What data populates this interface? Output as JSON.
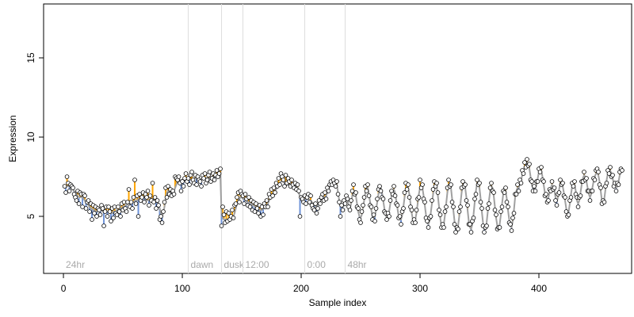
{
  "chart_data": {
    "type": "residual-scatter",
    "xlabel": "Sample index",
    "ylabel": "Expression",
    "xlim": [
      -16.7,
      478
    ],
    "ylim": [
      1.4,
      18.4
    ],
    "xticks": [
      0,
      100,
      200,
      300,
      400
    ],
    "yticks": [
      5,
      10,
      15
    ],
    "line_color": "#a0a0a0",
    "above_color": "#ffa500",
    "below_color": "#6f93d8",
    "point_color": "#ffffff",
    "vline_color": "#dddddd",
    "annotations": [
      {
        "x": 0,
        "label": "24hr",
        "line": false
      },
      {
        "x": 105,
        "label": "dawn",
        "line": true
      },
      {
        "x": 133,
        "label": "dusk",
        "line": true
      },
      {
        "x": 151,
        "label": "12:00",
        "line": true
      },
      {
        "x": 203,
        "label": "0:00",
        "line": true
      },
      {
        "x": 237,
        "label": "48hr",
        "line": true
      }
    ],
    "x": [
      1,
      2,
      3,
      4,
      5,
      6,
      7,
      8,
      9,
      10,
      11,
      12,
      13,
      14,
      15,
      16,
      17,
      18,
      19,
      20,
      21,
      22,
      23,
      24,
      25,
      26,
      27,
      28,
      29,
      30,
      31,
      32,
      33,
      34,
      35,
      36,
      37,
      38,
      39,
      40,
      41,
      42,
      43,
      44,
      45,
      46,
      47,
      48,
      49,
      50,
      51,
      52,
      53,
      54,
      55,
      56,
      57,
      58,
      59,
      60,
      61,
      62,
      63,
      64,
      65,
      66,
      67,
      68,
      69,
      70,
      71,
      72,
      73,
      74,
      75,
      76,
      77,
      78,
      79,
      80,
      81,
      82,
      83,
      84,
      85,
      86,
      87,
      88,
      89,
      90,
      91,
      92,
      93,
      94,
      95,
      96,
      97,
      98,
      99,
      100,
      101,
      102,
      103,
      104,
      105,
      106,
      107,
      108,
      109,
      110,
      111,
      112,
      113,
      114,
      115,
      116,
      117,
      118,
      119,
      120,
      121,
      122,
      123,
      124,
      125,
      126,
      127,
      128,
      129,
      130,
      131,
      132,
      133,
      134,
      135,
      136,
      137,
      138,
      139,
      140,
      141,
      142,
      143,
      144,
      145,
      146,
      147,
      148,
      149,
      150,
      151,
      152,
      153,
      154,
      155,
      156,
      157,
      158,
      159,
      160,
      161,
      162,
      163,
      164,
      165,
      166,
      167,
      168,
      169,
      170,
      171,
      172,
      173,
      174,
      175,
      176,
      177,
      178,
      179,
      180,
      181,
      182,
      183,
      184,
      185,
      186,
      187,
      188,
      189,
      190,
      191,
      192,
      193,
      194,
      195,
      196,
      197,
      198,
      199,
      200,
      201,
      202,
      203,
      204,
      205,
      206,
      207,
      208,
      209,
      210,
      211,
      212,
      213,
      214,
      215,
      216,
      217,
      218,
      219,
      220,
      221,
      222,
      223,
      224,
      225,
      226,
      227,
      228,
      229,
      230,
      231,
      232,
      233,
      234,
      235,
      236,
      237,
      238,
      239,
      240,
      241,
      242,
      243,
      244,
      245,
      246,
      247,
      248,
      249,
      250,
      251,
      252,
      253,
      254,
      255,
      256,
      257,
      258,
      259,
      260,
      261,
      262,
      263,
      264,
      265,
      266,
      267,
      268,
      269,
      270,
      271,
      272,
      273,
      274,
      275,
      276,
      277,
      278,
      279,
      280,
      281,
      282,
      283,
      284,
      285,
      286,
      287,
      288,
      289,
      290,
      291,
      292,
      293,
      294,
      295,
      296,
      297,
      298,
      299,
      300,
      301,
      302,
      303,
      304,
      305,
      306,
      307,
      308,
      309,
      310,
      311,
      312,
      313,
      314,
      315,
      316,
      317,
      318,
      319,
      320,
      321,
      322,
      323,
      324,
      325,
      326,
      327,
      328,
      329,
      330,
      331,
      332,
      333,
      334,
      335,
      336,
      337,
      338,
      339,
      340,
      341,
      342,
      343,
      344,
      345,
      346,
      347,
      348,
      349,
      350,
      351,
      352,
      353,
      354,
      355,
      356,
      357,
      358,
      359,
      360,
      361,
      362,
      363,
      364,
      365,
      366,
      367,
      368,
      369,
      370,
      371,
      372,
      373,
      374,
      375,
      376,
      377,
      378,
      379,
      380,
      381,
      382,
      383,
      384,
      385,
      386,
      387,
      388,
      389,
      390,
      391,
      392,
      393,
      394,
      395,
      396,
      397,
      398,
      399,
      400,
      401,
      402,
      403,
      404,
      405,
      406,
      407,
      408,
      409,
      410,
      411,
      412,
      413,
      414,
      415,
      416,
      417,
      418,
      419,
      420,
      421,
      422,
      423,
      424,
      425,
      426,
      427,
      428,
      429,
      430,
      431,
      432,
      433,
      434,
      435,
      436,
      437,
      438,
      439,
      440,
      441,
      442,
      443,
      444,
      445,
      446,
      447,
      448,
      449,
      450,
      451,
      452,
      453,
      454,
      455,
      456,
      457,
      458,
      459,
      460,
      461,
      462,
      463,
      464,
      465,
      466,
      467,
      468,
      469,
      470
    ],
    "fitted": [
      6.8,
      6.8,
      6.9,
      6.9,
      6.9,
      6.8,
      6.8,
      6.7,
      6.6,
      6.5,
      6.4,
      6.3,
      6.2,
      6.2,
      6.2,
      6.2,
      6.1,
      6.0,
      5.9,
      5.8,
      5.7,
      5.6,
      5.5,
      5.5,
      5.4,
      5.4,
      5.3,
      5.3,
      5.3,
      5.4,
      5.4,
      5.4,
      5.3,
      5.3,
      5.3,
      5.3,
      5.3,
      5.3,
      5.2,
      5.2,
      5.2,
      5.3,
      5.3,
      5.3,
      5.4,
      5.4,
      5.4,
      5.5,
      5.5,
      5.6,
      5.6,
      5.7,
      5.7,
      5.8,
      5.8,
      5.8,
      5.9,
      5.9,
      5.9,
      6.0,
      6.0,
      6.0,
      6.1,
      6.1,
      6.1,
      6.1,
      6.2,
      6.2,
      6.1,
      6.0,
      6.0,
      6.0,
      6.1,
      6.1,
      6.1,
      6.0,
      6.0,
      5.9,
      5.9,
      5.8,
      5.5,
      5.2,
      5.0,
      5.2,
      5.6,
      6.1,
      6.5,
      6.6,
      6.6,
      6.5,
      6.5,
      6.5,
      6.6,
      6.8,
      7.0,
      7.2,
      7.3,
      7.3,
      7.3,
      7.3,
      7.3,
      7.3,
      7.4,
      7.4,
      7.4,
      7.3,
      7.3,
      7.3,
      7.4,
      7.4,
      7.4,
      7.4,
      7.3,
      7.3,
      7.3,
      7.3,
      7.4,
      7.4,
      7.4,
      7.4,
      7.4,
      7.4,
      7.4,
      7.5,
      7.5,
      7.5,
      7.5,
      7.5,
      7.6,
      7.6,
      7.6,
      7.6,
      5.2,
      4.9,
      4.8,
      4.8,
      4.8,
      4.8,
      4.8,
      4.9,
      4.9,
      5.0,
      5.0,
      5.2,
      5.5,
      5.8,
      6.0,
      6.1,
      6.2,
      6.2,
      6.1,
      6.1,
      6.0,
      6.0,
      5.9,
      5.9,
      5.8,
      5.8,
      5.7,
      5.7,
      5.6,
      5.6,
      5.5,
      5.5,
      5.4,
      5.4,
      5.4,
      5.5,
      5.5,
      5.6,
      5.7,
      5.8,
      6.0,
      6.1,
      6.3,
      6.4,
      6.5,
      6.6,
      6.7,
      6.9,
      7.0,
      7.1,
      7.2,
      7.2,
      7.2,
      7.1,
      7.1,
      7.0,
      7.0,
      7.0,
      7.0,
      7.0,
      7.0,
      7.0,
      6.9,
      6.9,
      6.8,
      6.5,
      6.2,
      6.0,
      6.0,
      6.0,
      6.1,
      6.1,
      6.1,
      6.1,
      6.0,
      6.0,
      5.9,
      5.8,
      5.7,
      5.7,
      5.6,
      5.7,
      5.8,
      6.0,
      6.1,
      6.2,
      6.2,
      6.2,
      6.3,
      6.5,
      6.7,
      6.9,
      7.1,
      7.2,
      7.2,
      7.2,
      7.2,
      7.0,
      6.5,
      6.0,
      5.8,
      5.6,
      5.6,
      5.7,
      5.9,
      6.1,
      6.0,
      5.7,
      5.5,
      5.8,
      6.3,
      6.6,
      6.6,
      6.3,
      5.8,
      5.3,
      5.0,
      4.9,
      5.1,
      5.5,
      6.0,
      6.5,
      6.8,
      6.8,
      6.4,
      5.9,
      5.4,
      5.0,
      4.9,
      5.0,
      5.4,
      5.9,
      6.4,
      6.7,
      6.8,
      6.5,
      6.0,
      5.5,
      5.1,
      4.9,
      5.0,
      5.3,
      5.8,
      6.3,
      6.6,
      6.7,
      6.5,
      6.0,
      5.5,
      5.0,
      4.8,
      4.8,
      5.1,
      5.6,
      6.2,
      6.7,
      6.9,
      6.8,
      6.4,
      5.8,
      5.2,
      4.8,
      4.6,
      4.8,
      5.2,
      5.8,
      6.4,
      6.8,
      7.0,
      6.8,
      6.3,
      5.7,
      5.1,
      4.6,
      4.5,
      4.7,
      5.2,
      5.8,
      6.4,
      6.9,
      7.1,
      6.9,
      6.3,
      5.6,
      4.9,
      4.4,
      4.3,
      4.5,
      5.1,
      5.8,
      6.5,
      7.0,
      7.1,
      6.8,
      6.1,
      5.4,
      4.7,
      4.2,
      4.1,
      4.4,
      5.0,
      5.8,
      6.5,
      7.0,
      7.1,
      6.8,
      6.2,
      5.4,
      4.7,
      4.3,
      4.2,
      4.5,
      5.1,
      5.9,
      6.6,
      7.1,
      7.2,
      6.8,
      6.1,
      5.3,
      4.6,
      4.2,
      4.2,
      4.6,
      5.3,
      6.0,
      6.6,
      6.9,
      6.8,
      6.3,
      5.6,
      4.9,
      4.4,
      4.2,
      4.5,
      5.1,
      5.8,
      6.4,
      6.7,
      6.6,
      6.1,
      5.4,
      4.8,
      4.4,
      4.3,
      4.7,
      5.4,
      6.2,
      6.6,
      6.8,
      6.8,
      7.0,
      7.3,
      7.6,
      7.9,
      8.1,
      8.3,
      8.4,
      8.3,
      8.0,
      7.5,
      7.0,
      6.8,
      6.7,
      6.8,
      7.0,
      7.4,
      7.8,
      8.0,
      7.9,
      7.5,
      7.0,
      6.5,
      6.2,
      6.1,
      6.2,
      6.5,
      6.8,
      7.0,
      6.9,
      6.6,
      6.2,
      5.9,
      6.2,
      6.7,
      7.1,
      7.2,
      6.9,
      6.5,
      6.0,
      5.5,
      5.2,
      5.3,
      5.8,
      6.4,
      6.9,
      7.1,
      7.0,
      6.6,
      6.0,
      5.8,
      6.0,
      6.5,
      7.0,
      7.4,
      7.6,
      7.5,
      7.2,
      6.8,
      6.4,
      6.2,
      6.4,
      6.8,
      7.2,
      7.5,
      7.7,
      7.8,
      7.6,
      7.2,
      6.6,
      6.0,
      5.8,
      6.1,
      6.7,
      7.3,
      7.7,
      7.9,
      7.9,
      7.7,
      7.4,
      7.1,
      6.9,
      6.8,
      6.9,
      7.2,
      7.6,
      7.8,
      7.9
    ],
    "values": [
      6.9,
      6.5,
      7.5,
      7.1,
      6.6,
      7.0,
      6.9,
      6.8,
      6.4,
      6.2,
      6.0,
      6.6,
      5.8,
      6.5,
      6.4,
      5.6,
      6.4,
      6.3,
      5.5,
      5.9,
      6.0,
      5.3,
      5.8,
      4.8,
      5.7,
      5.2,
      5.6,
      5.0,
      5.5,
      5.4,
      5.1,
      5.7,
      5.5,
      4.4,
      5.3,
      5.6,
      5.0,
      5.6,
      5.3,
      4.7,
      5.5,
      4.9,
      5.6,
      5.2,
      5.1,
      5.6,
      5.3,
      5.0,
      5.8,
      5.4,
      5.9,
      5.5,
      5.3,
      5.9,
      6.7,
      5.6,
      5.9,
      5.5,
      6.2,
      7.3,
      5.8,
      6.3,
      5.0,
      6.4,
      6.0,
      6.2,
      6.5,
      5.9,
      6.4,
      6.2,
      6.6,
      5.7,
      6.3,
      6.0,
      7.1,
      5.9,
      6.2,
      5.5,
      6.0,
      5.7,
      4.8,
      5.0,
      4.6,
      5.3,
      5.9,
      6.8,
      6.2,
      6.9,
      6.4,
      6.7,
      6.3,
      6.6,
      6.4,
      7.5,
      7.4,
      7.3,
      7.5,
      7.1,
      6.6,
      7.2,
      6.9,
      7.4,
      7.7,
      7.2,
      7.4,
      7.0,
      7.6,
      7.8,
      7.3,
      7.1,
      7.6,
      7.0,
      7.5,
      7.3,
      7.2,
      6.9,
      7.6,
      7.4,
      7.7,
      7.1,
      7.3,
      7.6,
      7.8,
      7.2,
      7.4,
      7.7,
      7.3,
      7.6,
      7.9,
      7.5,
      7.7,
      8.0,
      4.4,
      5.6,
      5.1,
      4.6,
      5.3,
      4.7,
      5.2,
      4.8,
      5.0,
      5.4,
      4.9,
      5.7,
      5.8,
      6.2,
      6.5,
      5.9,
      6.6,
      6.4,
      6.3,
      5.8,
      6.4,
      6.1,
      5.7,
      6.2,
      5.6,
      6.0,
      5.4,
      5.9,
      5.3,
      5.8,
      5.5,
      5.2,
      5.7,
      5.0,
      5.6,
      5.1,
      5.8,
      5.6,
      6.0,
      5.6,
      6.4,
      6.2,
      6.7,
      6.3,
      6.8,
      6.5,
      7.1,
      6.9,
      7.4,
      7.0,
      7.7,
      7.5,
      7.3,
      6.9,
      7.6,
      7.1,
      7.4,
      7.2,
      6.9,
      7.3,
      7.0,
      6.8,
      7.1,
      6.7,
      7.0,
      6.6,
      5.0,
      6.2,
      6.1,
      5.9,
      6.3,
      5.8,
      6.2,
      6.4,
      5.9,
      6.3,
      5.7,
      5.5,
      5.4,
      5.8,
      5.2,
      5.5,
      6.0,
      5.8,
      6.2,
      6.4,
      6.0,
      6.5,
      6.1,
      6.8,
      6.6,
      7.0,
      7.2,
      7.0,
      7.3,
      7.1,
      6.9,
      7.2,
      6.4,
      5.9,
      5.0,
      5.7,
      5.4,
      6.0,
      5.8,
      6.3,
      6.1,
      5.6,
      5.4,
      6.0,
      6.6,
      7.0,
      6.4,
      6.5,
      5.6,
      5.5,
      4.8,
      4.6,
      5.3,
      5.7,
      6.2,
      6.9,
      6.6,
      7.0,
      6.3,
      5.7,
      5.6,
      4.8,
      5.1,
      4.7,
      5.5,
      6.1,
      6.7,
      6.9,
      6.6,
      6.2,
      6.1,
      5.3,
      5.2,
      4.8,
      5.2,
      5.0,
      6.0,
      6.6,
      6.4,
      6.9,
      6.3,
      5.8,
      5.7,
      4.9,
      5.0,
      4.5,
      5.3,
      5.5,
      6.5,
      7.1,
      6.7,
      7.0,
      6.2,
      5.6,
      5.4,
      4.6,
      4.8,
      4.6,
      5.4,
      6.1,
      6.2,
      7.3,
      6.8,
      7.0,
      6.1,
      5.9,
      4.9,
      4.7,
      4.3,
      4.9,
      5.0,
      6.0,
      6.7,
      7.2,
      6.9,
      7.1,
      6.5,
      5.4,
      5.1,
      4.3,
      4.5,
      4.3,
      5.3,
      5.6,
      6.8,
      7.3,
      6.9,
      7.0,
      5.9,
      5.6,
      4.5,
      4.0,
      4.3,
      4.2,
      5.3,
      5.6,
      6.8,
      7.2,
      6.9,
      7.0,
      6.0,
      5.7,
      4.5,
      4.5,
      4.0,
      4.7,
      4.9,
      6.1,
      6.4,
      7.3,
      7.0,
      7.1,
      5.9,
      5.5,
      4.4,
      4.0,
      4.3,
      4.4,
      5.5,
      5.8,
      6.8,
      7.1,
      6.6,
      6.5,
      5.4,
      5.1,
      4.2,
      4.3,
      4.3,
      5.3,
      5.6,
      6.6,
      6.5,
      6.8,
      5.9,
      5.6,
      4.6,
      4.5,
      4.1,
      4.9,
      5.2,
      6.4,
      6.4,
      7.0,
      6.6,
      7.3,
      7.1,
      7.9,
      7.7,
      8.4,
      8.1,
      8.6,
      8.2,
      8.3,
      7.3,
      7.2,
      6.6,
      6.9,
      6.6,
      7.2,
      7.2,
      8.0,
      7.8,
      8.1,
      7.3,
      7.2,
      6.3,
      6.4,
      5.9,
      6.0,
      6.7,
      6.6,
      7.2,
      6.7,
      6.8,
      6.0,
      5.7,
      6.4,
      6.5,
      7.3,
      7.0,
      7.1,
      6.3,
      6.2,
      5.3,
      5.0,
      5.1,
      6.0,
      6.2,
      7.1,
      6.9,
      7.2,
      6.4,
      6.2,
      5.6,
      6.2,
      6.3,
      7.2,
      7.2,
      7.8,
      7.3,
      7.4,
      6.6,
      6.6,
      6.0,
      6.6,
      6.6,
      7.4,
      7.3,
      7.9,
      8.0,
      7.8,
      7.0,
      6.8,
      5.8,
      6.0,
      5.9,
      6.9,
      7.1,
      7.9,
      7.7,
      8.1,
      7.5,
      7.6,
      6.9,
      7.1,
      6.6,
      7.1,
      7.0,
      7.8,
      8.0,
      7.9
    ]
  }
}
